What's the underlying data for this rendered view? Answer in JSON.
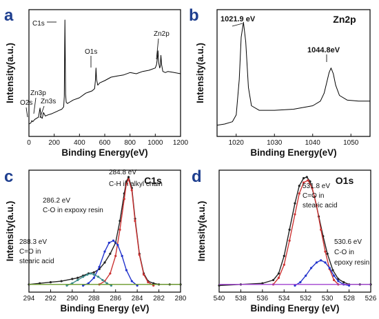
{
  "chart_data": [
    {
      "type": "line",
      "panel_label": "a",
      "xlabel": "Binding Energy(eV)",
      "ylabel": "Intensity(a.u.)",
      "xlim": [
        0,
        1200
      ],
      "xticks": [
        0,
        200,
        400,
        600,
        800,
        1000,
        1200
      ],
      "series": [
        {
          "color": "#000000",
          "x": [
            0,
            15,
            23,
            30,
            45,
            60,
            75,
            88,
            95,
            105,
            115,
            130,
            150,
            180,
            200,
            220,
            240,
            260,
            275,
            280,
            284.8,
            290,
            295,
            305,
            320,
            350,
            400,
            450,
            500,
            520,
            527,
            531,
            535,
            545,
            560,
            600,
            650,
            700,
            750,
            800,
            850,
            900,
            950,
            1000,
            1010,
            1018,
            1021.9,
            1026,
            1035,
            1040,
            1044.8,
            1050,
            1060,
            1080,
            1100,
            1150,
            1200
          ],
          "y": [
            0.06,
            0.07,
            0.09,
            0.08,
            0.1,
            0.11,
            0.12,
            0.2,
            0.12,
            0.11,
            0.16,
            0.13,
            0.14,
            0.15,
            0.16,
            0.17,
            0.18,
            0.19,
            0.21,
            0.3,
            0.97,
            0.32,
            0.25,
            0.24,
            0.25,
            0.27,
            0.29,
            0.33,
            0.35,
            0.37,
            0.45,
            0.55,
            0.45,
            0.4,
            0.42,
            0.44,
            0.47,
            0.48,
            0.49,
            0.51,
            0.5,
            0.52,
            0.53,
            0.55,
            0.58,
            0.65,
            0.7,
            0.6,
            0.55,
            0.57,
            0.66,
            0.58,
            0.52,
            0.51,
            0.52,
            0.51,
            0.5
          ]
        }
      ],
      "annotations": [
        {
          "text": "C1s",
          "x": 284.8
        },
        {
          "text": "O1s",
          "x": 531
        },
        {
          "text": "Zn2p",
          "x": 1030
        },
        {
          "text": "Zn3p",
          "x": 88
        },
        {
          "text": "O2s",
          "x": 23
        },
        {
          "text": "Zn3s",
          "x": 140
        }
      ]
    },
    {
      "type": "line",
      "panel_label": "b",
      "title": "Zn2p",
      "xlabel": "Binding Energy(eV)",
      "ylabel": "Intensity(a.u.)",
      "xlim": [
        1015,
        1055
      ],
      "xticks": [
        1020,
        1030,
        1040,
        1050
      ],
      "series": [
        {
          "color": "#000000",
          "x": [
            1015,
            1017,
            1019,
            1020,
            1020.8,
            1021.3,
            1021.9,
            1022.5,
            1023.2,
            1024,
            1026,
            1030,
            1035,
            1040,
            1042,
            1043,
            1043.8,
            1044.3,
            1044.8,
            1045.4,
            1046,
            1047,
            1049,
            1052,
            1055
          ],
          "y": [
            0.05,
            0.06,
            0.08,
            0.14,
            0.45,
            0.82,
            0.95,
            0.78,
            0.38,
            0.22,
            0.18,
            0.18,
            0.19,
            0.22,
            0.26,
            0.33,
            0.44,
            0.51,
            0.55,
            0.5,
            0.4,
            0.31,
            0.27,
            0.26,
            0.26
          ]
        }
      ],
      "annotations": [
        {
          "text": "1021.9 eV",
          "x": 1021.9
        },
        {
          "text": "1044.8eV",
          "x": 1044.8
        }
      ]
    },
    {
      "type": "line",
      "panel_label": "c",
      "title": "C1s",
      "xlabel": "Binding Energy (eV)",
      "ylabel": "Intensity(a.u.)",
      "xlim": [
        294,
        280
      ],
      "xticks": [
        294,
        292,
        290,
        288,
        286,
        284,
        282,
        280
      ],
      "series": [
        {
          "color": "#222222",
          "x": [
            294,
            293,
            292,
            291,
            290,
            289.5,
            289,
            288.5,
            288,
            287.5,
            287,
            286.5,
            286,
            285.6,
            285.2,
            285,
            284.8,
            284.5,
            284.2,
            283.8,
            283.4,
            283,
            282.5,
            282,
            281,
            280
          ],
          "y": [
            0.02,
            0.03,
            0.04,
            0.05,
            0.07,
            0.08,
            0.1,
            0.12,
            0.13,
            0.16,
            0.22,
            0.3,
            0.4,
            0.6,
            0.85,
            0.96,
            1.0,
            0.9,
            0.62,
            0.3,
            0.12,
            0.05,
            0.03,
            0.02,
            0.02,
            0.02
          ]
        },
        {
          "color": "#cc3333",
          "x": [
            287.5,
            287,
            286.5,
            286,
            285.6,
            285.2,
            285,
            284.8,
            284.5,
            284.2,
            283.8,
            283.4,
            283,
            282.5
          ],
          "y": [
            0.02,
            0.05,
            0.12,
            0.28,
            0.52,
            0.8,
            0.94,
            0.98,
            0.88,
            0.6,
            0.29,
            0.11,
            0.04,
            0.01
          ]
        },
        {
          "color": "#2233cc",
          "x": [
            289,
            288.5,
            288,
            287.5,
            287,
            286.6,
            286.2,
            285.8,
            285.4,
            285,
            284.5,
            284
          ],
          "y": [
            0.01,
            0.03,
            0.08,
            0.18,
            0.32,
            0.4,
            0.42,
            0.38,
            0.28,
            0.15,
            0.05,
            0.01
          ]
        },
        {
          "color": "#3a8a8a",
          "x": [
            290.5,
            290,
            289.5,
            289,
            288.6,
            288.3,
            288,
            287.6,
            287.2,
            286.8,
            286.4
          ],
          "y": [
            0.01,
            0.03,
            0.06,
            0.09,
            0.11,
            0.12,
            0.11,
            0.09,
            0.06,
            0.03,
            0.01
          ]
        },
        {
          "color": "#6a9a2a",
          "x": [
            294,
            280
          ],
          "y": [
            0.02,
            0.02
          ]
        }
      ],
      "annotations": [
        {
          "text": "284.8 eV",
          "color": "#b03a10"
        },
        {
          "text": "C-H in alkyl chain",
          "color": "#b03a10"
        },
        {
          "text": "286.2 eV",
          "color": "#2233bb"
        },
        {
          "text": "C-O in expoxy resin",
          "color": "#2233bb"
        },
        {
          "text": "288.3 eV",
          "color": "#2a7a7a"
        },
        {
          "text": "C=O in",
          "color": "#2a7a7a"
        },
        {
          "text": "stearic acid",
          "color": "#2a7a7a"
        }
      ]
    },
    {
      "type": "line",
      "panel_label": "d",
      "title": "O1s",
      "xlabel": "Binding Energy (eV)",
      "ylabel": "Intensity(a.u.)",
      "xlim": [
        540,
        526
      ],
      "xticks": [
        540,
        538,
        536,
        534,
        532,
        530,
        528,
        526
      ],
      "series": [
        {
          "color": "#222222",
          "x": [
            540,
            538,
            536,
            535,
            534.5,
            534,
            533.5,
            533,
            532.6,
            532.2,
            531.9,
            531.6,
            531.2,
            530.8,
            530.4,
            530,
            529.5,
            529,
            528.5,
            528,
            527,
            526
          ],
          "y": [
            0.01,
            0.02,
            0.03,
            0.06,
            0.12,
            0.28,
            0.52,
            0.76,
            0.92,
            0.99,
            1.0,
            0.96,
            0.82,
            0.64,
            0.46,
            0.3,
            0.15,
            0.07,
            0.04,
            0.02,
            0.02,
            0.02
          ]
        },
        {
          "color": "#cc3333",
          "x": [
            535,
            534.5,
            534,
            533.5,
            533,
            532.6,
            532.2,
            531.8,
            531.4,
            531,
            530.6,
            530.2,
            529.8,
            529.4,
            529
          ],
          "y": [
            0.02,
            0.08,
            0.2,
            0.42,
            0.66,
            0.85,
            0.95,
            0.97,
            0.9,
            0.74,
            0.52,
            0.32,
            0.16,
            0.06,
            0.02
          ]
        },
        {
          "color": "#2233cc",
          "x": [
            533,
            532.5,
            532,
            531.5,
            531,
            530.6,
            530.2,
            529.8,
            529.4,
            529,
            528.5,
            528
          ],
          "y": [
            0.01,
            0.04,
            0.1,
            0.17,
            0.22,
            0.24,
            0.22,
            0.17,
            0.1,
            0.05,
            0.02,
            0.01
          ]
        },
        {
          "color": "#a040d0",
          "x": [
            540,
            526
          ],
          "y": [
            0.02,
            0.02
          ]
        }
      ],
      "annotations": [
        {
          "text": "531.8 eV",
          "color": "#b03a10"
        },
        {
          "text": "C=O in",
          "color": "#b03a10"
        },
        {
          "text": "stearic acid",
          "color": "#b03a10"
        },
        {
          "text": "530.6 eV",
          "color": "#2233bb"
        },
        {
          "text": "C-O in",
          "color": "#2233bb"
        },
        {
          "text": "epoxy resin",
          "color": "#2233bb"
        }
      ]
    }
  ]
}
